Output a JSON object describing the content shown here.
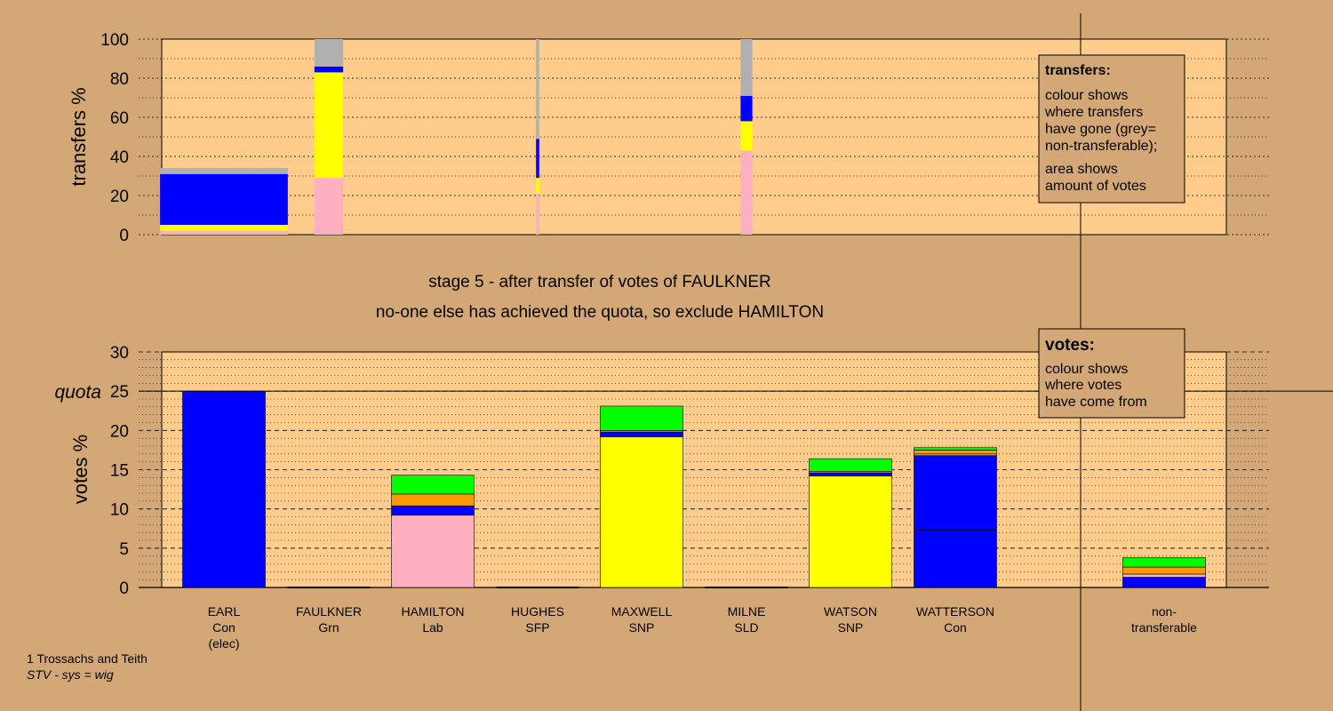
{
  "colors": {
    "background": "#d4a876",
    "plot_area": "#ffcc8c",
    "Con": "#0000ff",
    "Grn": "#00ff00",
    "Lab": "#ffb0c0",
    "SNP": "#ffff00",
    "SFP": "#ff9a00",
    "SLD": "#ff8c00",
    "non_transferable": "#b0b0b0"
  },
  "header": {
    "stage_line": "stage 5 - after transfer of votes of FAULKNER",
    "note_line": "no-one else has achieved the quota, so exclude HAMILTON"
  },
  "footer": {
    "constituency": "1 Trossachs and Teith",
    "system": "STV - sys = wig"
  },
  "legends": {
    "transfers": {
      "title": "transfers:",
      "lines_a": [
        "colour shows",
        "where transfers",
        "have gone (grey=",
        "non-transferable);"
      ],
      "lines_b": [
        "area shows",
        "amount of votes"
      ]
    },
    "votes": {
      "title": "votes:",
      "lines": [
        "colour shows",
        "where votes",
        "have come from"
      ]
    }
  },
  "chart_data": [
    {
      "type": "bar",
      "ylabel": "transfers %",
      "ylim": [
        0,
        100
      ],
      "yticks": [
        0,
        20,
        40,
        60,
        80,
        100
      ],
      "grid": "dotted",
      "bars": [
        {
          "source": "EARL",
          "width_pct": 12.0,
          "segments": [
            {
              "party": "Lab",
              "value": 2
            },
            {
              "party": "SNP",
              "value": 3
            },
            {
              "party": "Con",
              "value": 26
            },
            {
              "party": "non_transferable",
              "value": 3
            }
          ]
        },
        {
          "source": "FAULKNER",
          "width_pct": 2.7,
          "segments": [
            {
              "party": "Lab",
              "value": 29
            },
            {
              "party": "SNP",
              "value": 54
            },
            {
              "party": "Con",
              "value": 3
            },
            {
              "party": "non_transferable",
              "value": 14
            }
          ]
        },
        {
          "source": "HUGHES",
          "width_pct": 0.3,
          "segments": [
            {
              "party": "Lab",
              "value": 21
            },
            {
              "party": "SNP",
              "value": 8
            },
            {
              "party": "Con",
              "value": 20
            },
            {
              "party": "non_transferable",
              "value": 51
            }
          ]
        },
        {
          "source": "MILNE",
          "width_pct": 1.1,
          "segments": [
            {
              "party": "Lab",
              "value": 43
            },
            {
              "party": "SNP",
              "value": 15
            },
            {
              "party": "Con",
              "value": 13
            },
            {
              "party": "non_transferable",
              "value": 29
            }
          ]
        }
      ]
    },
    {
      "type": "bar",
      "ylabel": "votes %",
      "ylim": [
        0,
        30
      ],
      "yticks": [
        0,
        5,
        10,
        15,
        20,
        25,
        30
      ],
      "quota": 25,
      "quota_label": "quota",
      "grid": "dashed",
      "candidates": [
        {
          "name": "EARL",
          "party": "Con",
          "note": "(elec)",
          "segments": [
            {
              "party": "Con",
              "value": 25.0
            }
          ]
        },
        {
          "name": "FAULKNER",
          "party": "Grn",
          "note": "",
          "segments": []
        },
        {
          "name": "HAMILTON",
          "party": "Lab",
          "note": "",
          "segments": [
            {
              "party": "Lab",
              "value": 9.2
            },
            {
              "party": "Con",
              "value": 1.2
            },
            {
              "party": "SFP",
              "value": 1.5
            },
            {
              "party": "Grn",
              "value": 2.4
            }
          ]
        },
        {
          "name": "HUGHES",
          "party": "SFP",
          "note": "",
          "segments": []
        },
        {
          "name": "MAXWELL",
          "party": "SNP",
          "note": "",
          "segments": [
            {
              "party": "SNP",
              "value": 19.2
            },
            {
              "party": "Con",
              "value": 0.6
            },
            {
              "party": "SFP",
              "value": 0.2
            },
            {
              "party": "Grn",
              "value": 3.1
            }
          ]
        },
        {
          "name": "MILNE",
          "party": "SLD",
          "note": "",
          "segments": []
        },
        {
          "name": "WATSON",
          "party": "SNP",
          "note": "",
          "segments": [
            {
              "party": "SNP",
              "value": 14.2
            },
            {
              "party": "Con",
              "value": 0.4
            },
            {
              "party": "SFP",
              "value": 0.2
            },
            {
              "party": "Grn",
              "value": 1.6
            }
          ]
        },
        {
          "name": "WATTERSON",
          "party": "Con",
          "note": "",
          "segments": [
            {
              "party": "Con",
              "value": 7.3
            },
            {
              "party": "Con",
              "value": 9.5
            },
            {
              "party": "Lab",
              "value": 0.2
            },
            {
              "party": "SFP",
              "value": 0.5
            },
            {
              "party": "Grn",
              "value": 0.3
            }
          ]
        }
      ],
      "non_transferable": {
        "label": [
          "non-",
          "transferable"
        ],
        "segments": [
          {
            "party": "Con",
            "value": 1.3
          },
          {
            "party": "Lab",
            "value": 0.4
          },
          {
            "party": "SFP",
            "value": 0.9
          },
          {
            "party": "Grn",
            "value": 1.2
          }
        ]
      }
    }
  ]
}
